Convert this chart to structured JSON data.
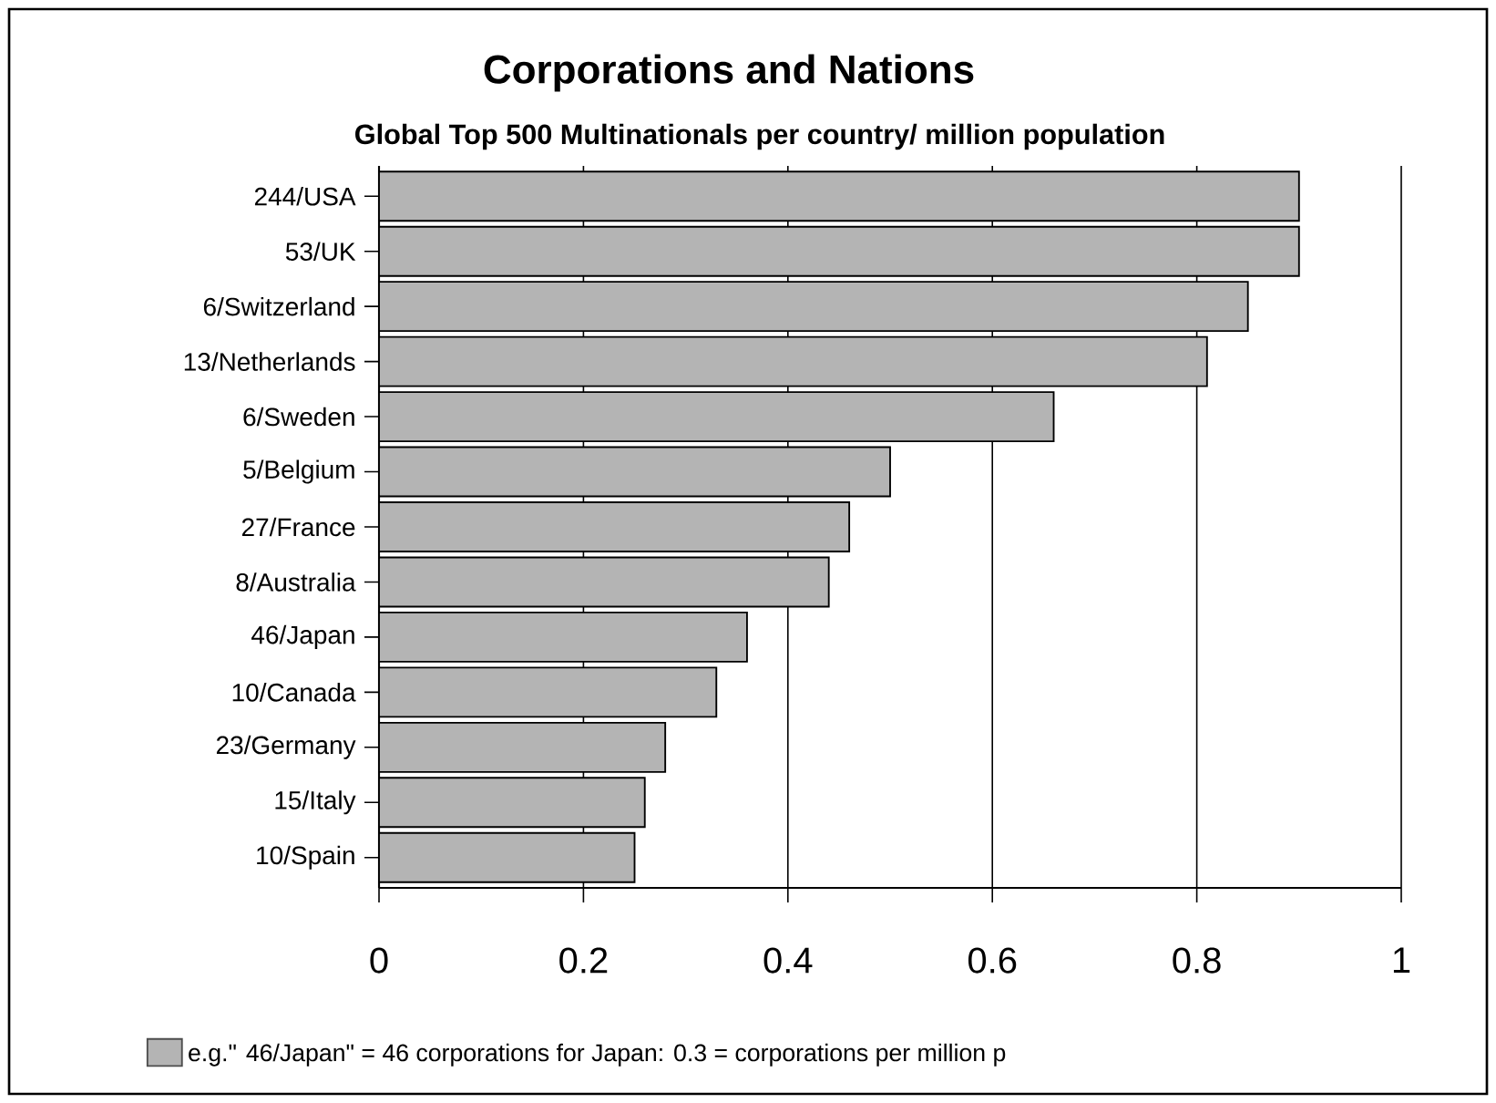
{
  "chart_data": {
    "type": "bar",
    "orientation": "horizontal",
    "title": "Corporations and Nations",
    "subtitle": "Global Top 500  Multinationals per country/ million population",
    "categories": [
      "244/USA",
      "53/UK",
      "6/Switzerland",
      "13/Netherlands",
      "6/Sweden",
      "5/Belgium",
      "27/France",
      "8/Australia",
      "46/Japan",
      "10/Canada",
      "23/Germany",
      "15/Italy",
      "10/Spain"
    ],
    "series": [
      {
        "name": "e.g.\" 46/Japan\" = 46 corporations for Japan:  0.3 = corporations  per million p",
        "color": "#b4b4b4",
        "values": [
          0.9,
          0.9,
          0.85,
          0.81,
          0.66,
          0.5,
          0.46,
          0.44,
          0.36,
          0.33,
          0.28,
          0.26,
          0.25
        ]
      }
    ],
    "xlim": [
      0,
      1
    ],
    "xticks": [
      0,
      0.2,
      0.4,
      0.6,
      0.8,
      1
    ],
    "grid": "x",
    "legend": "bottom"
  }
}
